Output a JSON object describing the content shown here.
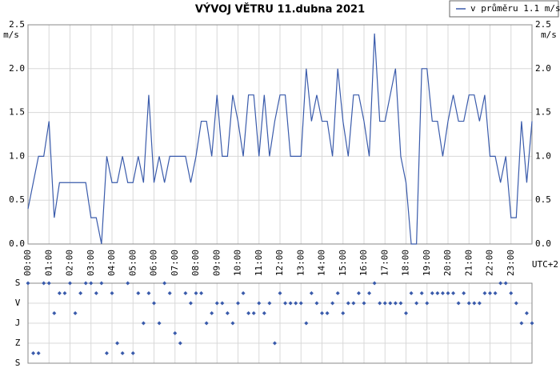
{
  "chart_data": [
    {
      "type": "line",
      "title": "VÝVOJ VĚTRU  11.dubna 2021",
      "y_label": "m/s",
      "x_note": "UTC+2",
      "legend": "top-right",
      "grid": true,
      "x": [
        "00:00",
        "00:15",
        "00:30",
        "00:45",
        "01:00",
        "01:15",
        "01:30",
        "01:45",
        "02:00",
        "02:15",
        "02:30",
        "02:45",
        "03:00",
        "03:15",
        "03:30",
        "03:45",
        "04:00",
        "04:15",
        "04:30",
        "04:45",
        "05:00",
        "05:15",
        "05:30",
        "05:45",
        "06:00",
        "06:15",
        "06:30",
        "06:45",
        "07:00",
        "07:15",
        "07:30",
        "07:45",
        "08:00",
        "08:15",
        "08:30",
        "08:45",
        "09:00",
        "09:15",
        "09:30",
        "09:45",
        "10:00",
        "10:15",
        "10:30",
        "10:45",
        "11:00",
        "11:15",
        "11:30",
        "11:45",
        "12:00",
        "12:15",
        "12:30",
        "12:45",
        "13:00",
        "13:15",
        "13:30",
        "13:45",
        "14:00",
        "14:15",
        "14:30",
        "14:45",
        "15:00",
        "15:15",
        "15:30",
        "15:45",
        "16:00",
        "16:15",
        "16:30",
        "16:45",
        "17:00",
        "17:15",
        "17:30",
        "17:45",
        "18:00",
        "18:15",
        "18:30",
        "18:45",
        "19:00",
        "19:15",
        "19:30",
        "19:45",
        "20:00",
        "20:15",
        "20:30",
        "20:45",
        "21:00",
        "21:15",
        "21:30",
        "21:45",
        "22:00",
        "22:15",
        "22:30",
        "22:45",
        "23:00",
        "23:15",
        "23:30",
        "23:45",
        "24:00"
      ],
      "series": [
        {
          "name": "v průměru 1.1 m/s",
          "color": "#3a5bab",
          "values": [
            0.4,
            0.7,
            1.0,
            1.0,
            1.4,
            0.3,
            0.7,
            0.7,
            0.7,
            0.7,
            0.7,
            0.7,
            0.3,
            0.3,
            0.0,
            1.0,
            0.7,
            0.7,
            1.0,
            0.7,
            0.7,
            1.0,
            0.7,
            1.7,
            0.7,
            1.0,
            0.7,
            1.0,
            1.0,
            1.0,
            1.0,
            0.7,
            1.0,
            1.4,
            1.4,
            1.0,
            1.7,
            1.0,
            1.0,
            1.7,
            1.4,
            1.0,
            1.7,
            1.7,
            1.0,
            1.7,
            1.0,
            1.4,
            1.7,
            1.7,
            1.0,
            1.0,
            1.0,
            2.0,
            1.4,
            1.7,
            1.4,
            1.4,
            1.0,
            2.0,
            1.4,
            1.0,
            1.7,
            1.7,
            1.4,
            1.0,
            2.4,
            1.4,
            1.4,
            1.7,
            2.0,
            1.0,
            0.7,
            0.0,
            0.0,
            2.0,
            2.0,
            1.4,
            1.4,
            1.0,
            1.4,
            1.7,
            1.4,
            1.4,
            1.7,
            1.7,
            1.4,
            1.7,
            1.0,
            1.0,
            0.7,
            1.0,
            0.3,
            0.3,
            1.4,
            0.7,
            1.4
          ]
        }
      ],
      "xlim": [
        "00:00",
        "24:00"
      ],
      "xticks": [
        "00:00",
        "01:00",
        "02:00",
        "03:00",
        "04:00",
        "05:00",
        "06:00",
        "07:00",
        "08:00",
        "09:00",
        "10:00",
        "11:00",
        "12:00",
        "13:00",
        "14:00",
        "15:00",
        "16:00",
        "17:00",
        "18:00",
        "19:00",
        "20:00",
        "21:00",
        "22:00",
        "23:00"
      ],
      "ylim": [
        0,
        2.5
      ],
      "yticks": [
        {
          "value": 0,
          "label": "0.0"
        },
        0.5,
        {
          "value": 1,
          "label": "1.0"
        },
        1.5,
        {
          "value": 2,
          "label": "2.0"
        },
        2.5
      ]
    },
    {
      "type": "scatter",
      "invert_y": true,
      "color": "#3a5bab",
      "x": [
        "00:00",
        "00:15",
        "00:30",
        "00:45",
        "01:00",
        "01:15",
        "01:30",
        "01:45",
        "02:00",
        "02:15",
        "02:30",
        "02:45",
        "03:00",
        "03:15",
        "03:30",
        "03:45",
        "04:00",
        "04:15",
        "04:30",
        "04:45",
        "05:00",
        "05:15",
        "05:30",
        "05:45",
        "06:00",
        "06:15",
        "06:30",
        "06:45",
        "07:00",
        "07:15",
        "07:30",
        "07:45",
        "08:00",
        "08:15",
        "08:30",
        "08:45",
        "09:00",
        "09:15",
        "09:30",
        "09:45",
        "10:00",
        "10:15",
        "10:30",
        "10:45",
        "11:00",
        "11:15",
        "11:30",
        "11:45",
        "12:00",
        "12:15",
        "12:30",
        "12:45",
        "13:00",
        "13:15",
        "13:30",
        "13:45",
        "14:00",
        "14:15",
        "14:30",
        "14:45",
        "15:00",
        "15:15",
        "15:30",
        "15:45",
        "16:00",
        "16:15",
        "16:30",
        "16:45",
        "17:00",
        "17:15",
        "17:30",
        "17:45",
        "18:00",
        "18:15",
        "18:30",
        "18:45",
        "19:00",
        "19:15",
        "19:30",
        "19:45",
        "20:00",
        "20:15",
        "20:30",
        "20:45",
        "21:00",
        "21:15",
        "21:30",
        "21:45",
        "22:00",
        "22:15",
        "22:30",
        "22:45",
        "23:00",
        "23:15",
        "23:30",
        "23:45",
        "24:00"
      ],
      "values": [
        0,
        315,
        315,
        0,
        0,
        135,
        45,
        45,
        0,
        135,
        45,
        0,
        0,
        45,
        0,
        315,
        45,
        270,
        315,
        0,
        315,
        45,
        180,
        45,
        90,
        180,
        0,
        45,
        225,
        270,
        45,
        90,
        45,
        45,
        180,
        135,
        90,
        90,
        135,
        180,
        90,
        45,
        135,
        135,
        90,
        135,
        90,
        270,
        45,
        90,
        90,
        90,
        90,
        180,
        45,
        90,
        135,
        135,
        90,
        45,
        135,
        90,
        90,
        45,
        90,
        45,
        0,
        90,
        90,
        90,
        90,
        90,
        135,
        45,
        90,
        45,
        90,
        45,
        45,
        45,
        45,
        45,
        90,
        45,
        90,
        90,
        90,
        45,
        45,
        45,
        0,
        0,
        45,
        90,
        180,
        135,
        180
      ],
      "xlim": [
        "00:00",
        "24:00"
      ],
      "ylim": [
        0,
        360
      ],
      "yticks": [
        {
          "value": 0,
          "label": "S"
        },
        {
          "value": 90,
          "label": "V"
        },
        {
          "value": 180,
          "label": "J"
        },
        {
          "value": 270,
          "label": "Z"
        },
        {
          "value": 360,
          "label": "S"
        }
      ]
    }
  ]
}
